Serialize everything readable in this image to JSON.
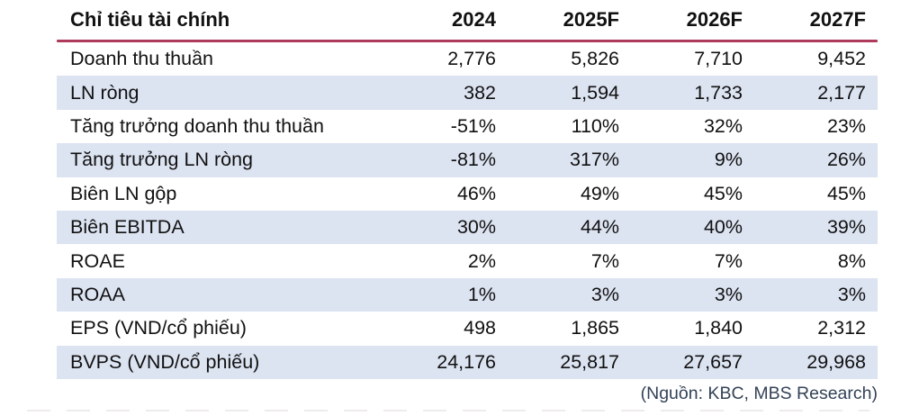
{
  "table": {
    "header": {
      "label": "Chỉ tiêu tài chính",
      "columns": [
        "2024",
        "2025F",
        "2026F",
        "2027F"
      ]
    },
    "rows": [
      {
        "label": "Doanh thu thuần",
        "values": [
          "2,776",
          "5,826",
          "7,710",
          "9,452"
        ],
        "shaded": false
      },
      {
        "label": "LN ròng",
        "values": [
          "382",
          "1,594",
          "1,733",
          "2,177"
        ],
        "shaded": true
      },
      {
        "label": "Tăng trưởng doanh thu thuần",
        "values": [
          "-51%",
          "110%",
          "32%",
          "23%"
        ],
        "shaded": false
      },
      {
        "label": "Tăng trưởng LN ròng",
        "values": [
          "-81%",
          "317%",
          "9%",
          "26%"
        ],
        "shaded": true
      },
      {
        "label": "Biên LN gộp",
        "values": [
          "46%",
          "49%",
          "45%",
          "45%"
        ],
        "shaded": false
      },
      {
        "label": "Biên EBITDA",
        "values": [
          "30%",
          "44%",
          "40%",
          "39%"
        ],
        "shaded": true
      },
      {
        "label": "ROAE",
        "values": [
          "2%",
          "7%",
          "7%",
          "8%"
        ],
        "shaded": false
      },
      {
        "label": "ROAA",
        "values": [
          "1%",
          "3%",
          "3%",
          "3%"
        ],
        "shaded": true
      },
      {
        "label": "EPS (VND/cổ phiếu)",
        "values": [
          "498",
          "1,865",
          "1,840",
          "2,312"
        ],
        "shaded": false
      },
      {
        "label": "BVPS (VND/cổ phiếu)",
        "values": [
          "24,176",
          "25,817",
          "27,657",
          "29,968"
        ],
        "shaded": true
      }
    ],
    "source": "(Nguồn: KBC, MBS Research)"
  },
  "colors": {
    "accent_line": "#ae3b5c",
    "row_shade": "#dce3f1",
    "source_text": "#334257",
    "text": "#111111"
  }
}
